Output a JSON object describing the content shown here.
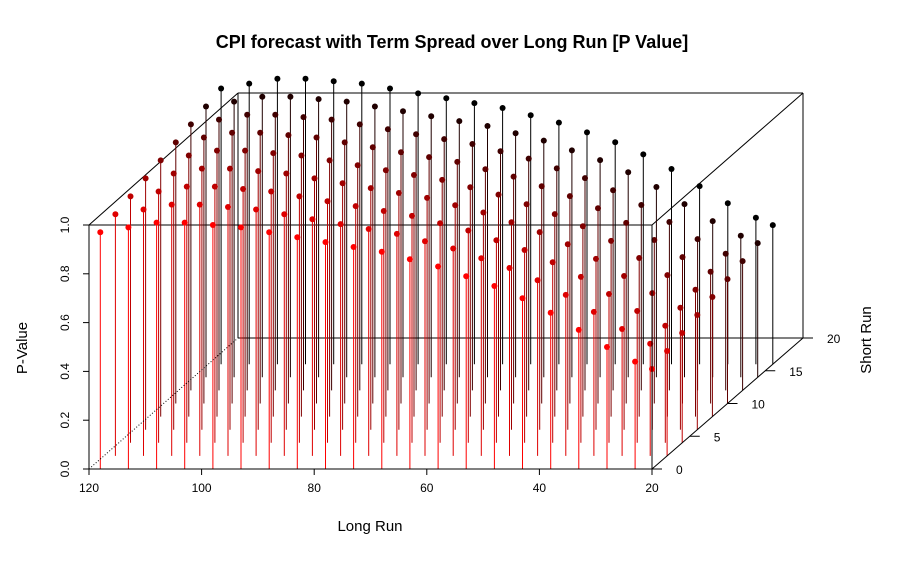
{
  "chart_data": {
    "type": "scatter3d",
    "title": "CPI forecast with Term Spread over Long Run [P Value]",
    "xlabel": "Long Run",
    "ylabel": "Short Run",
    "zlabel": "P-Value",
    "xlim": [
      20,
      120
    ],
    "ylim": [
      0,
      20
    ],
    "zlim": [
      0,
      1
    ],
    "x_ticks": [
      "120",
      "100",
      "80",
      "60",
      "40",
      "20"
    ],
    "y_ticks": [
      "0",
      "5",
      "10",
      "15",
      "20"
    ],
    "z_ticks": [
      "0.0",
      "0.2",
      "0.4",
      "0.6",
      "0.8",
      "1.0"
    ],
    "grid": false,
    "type_h_drop_lines": true,
    "color_gradient": {
      "low_short_run": "#ff0000",
      "high_short_run": "#000000"
    },
    "x": [
      118,
      113,
      108,
      103,
      98,
      93,
      88,
      83,
      78,
      73,
      68,
      63,
      58,
      53,
      48,
      43,
      38,
      33,
      28,
      23,
      20
    ],
    "series": [
      {
        "short_run": 0,
        "values": [
          0.97,
          0.99,
          1.01,
          1.01,
          1.0,
          0.99,
          0.97,
          0.95,
          0.93,
          0.91,
          0.89,
          0.86,
          0.83,
          0.79,
          0.75,
          0.7,
          0.64,
          0.57,
          0.5,
          0.44,
          0.41
        ]
      },
      {
        "short_run": 2,
        "values": [
          0.99,
          1.01,
          1.03,
          1.03,
          1.02,
          1.01,
          0.99,
          0.97,
          0.95,
          0.93,
          0.91,
          0.88,
          0.85,
          0.81,
          0.77,
          0.72,
          0.66,
          0.59,
          0.52,
          0.46,
          0.43
        ]
      },
      {
        "short_run": 4,
        "values": [
          1.01,
          1.03,
          1.05,
          1.05,
          1.04,
          1.03,
          1.01,
          0.99,
          0.97,
          0.95,
          0.93,
          0.9,
          0.87,
          0.83,
          0.79,
          0.74,
          0.68,
          0.61,
          0.54,
          0.48,
          0.45
        ]
      },
      {
        "short_run": 6,
        "values": [
          1.03,
          1.05,
          1.07,
          1.07,
          1.06,
          1.05,
          1.03,
          1.01,
          0.99,
          0.97,
          0.95,
          0.92,
          0.89,
          0.85,
          0.81,
          0.76,
          0.7,
          0.63,
          0.56,
          0.5,
          0.47
        ]
      },
      {
        "short_run": 8,
        "values": [
          1.05,
          1.07,
          1.09,
          1.09,
          1.08,
          1.07,
          1.05,
          1.03,
          1.01,
          0.99,
          0.97,
          0.94,
          0.91,
          0.87,
          0.83,
          0.78,
          0.72,
          0.65,
          0.58,
          0.52,
          0.49
        ]
      },
      {
        "short_run": 10,
        "values": [
          1.07,
          1.09,
          1.11,
          1.11,
          1.1,
          1.09,
          1.07,
          1.05,
          1.03,
          1.01,
          0.99,
          0.96,
          0.93,
          0.89,
          0.85,
          0.8,
          0.74,
          0.67,
          0.6,
          0.54,
          0.51
        ]
      },
      {
        "short_run": 12,
        "values": [
          1.09,
          1.11,
          1.13,
          1.13,
          1.12,
          1.11,
          1.09,
          1.07,
          1.05,
          1.03,
          1.01,
          0.98,
          0.95,
          0.91,
          0.87,
          0.82,
          0.76,
          0.69,
          0.62,
          0.56,
          0.53
        ]
      },
      {
        "short_run": 14,
        "values": [
          1.11,
          1.13,
          1.15,
          1.15,
          1.14,
          1.13,
          1.11,
          1.09,
          1.07,
          1.05,
          1.03,
          1.0,
          0.97,
          0.93,
          0.89,
          0.84,
          0.78,
          0.71,
          0.64,
          0.58,
          0.55
        ]
      },
      {
        "short_run": 16,
        "values": [
          1.13,
          1.15,
          1.17,
          1.17,
          1.16,
          1.15,
          1.13,
          1.11,
          1.09,
          1.07,
          1.05,
          1.02,
          0.99,
          0.95,
          0.91,
          0.86,
          0.8,
          0.73,
          0.66,
          0.6,
          0.57
        ]
      }
    ]
  }
}
